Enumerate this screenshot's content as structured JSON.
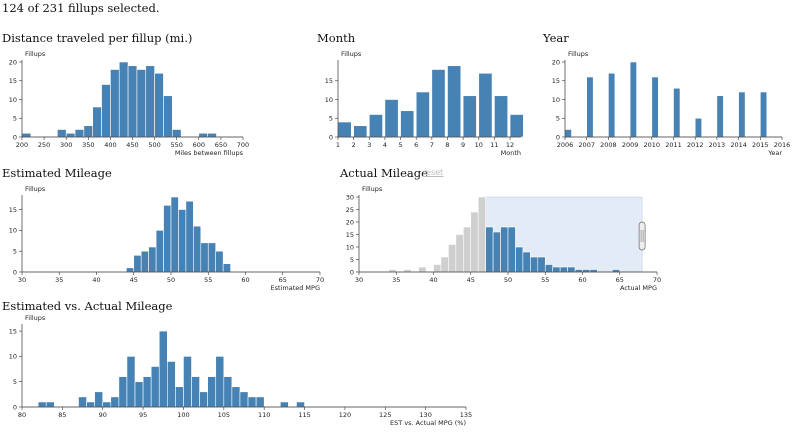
{
  "status_text": "124 of 231 fillups selected.",
  "colors": {
    "selected": "#4682b4",
    "unselected": "#cfcfcf",
    "brush": "#e3ebf6"
  },
  "reset_label": "reset",
  "chart_data": [
    {
      "id": "distance",
      "type": "bar",
      "title": "Distance traveled per fillup (mi.)",
      "ylabel": "Fillups",
      "xlabel": "Miles between fillups",
      "xlim": [
        200,
        700
      ],
      "ylim": [
        0,
        20
      ],
      "xticks": [
        200,
        250,
        300,
        350,
        400,
        450,
        500,
        550,
        600,
        650,
        700
      ],
      "yticks": [
        0,
        5,
        10,
        15,
        20
      ],
      "bin_width": 20,
      "bins": [
        200,
        280,
        300,
        320,
        340,
        360,
        380,
        400,
        420,
        440,
        460,
        480,
        500,
        520,
        540,
        600,
        620
      ],
      "values": [
        1,
        2,
        1,
        2,
        3,
        8,
        14,
        18,
        20,
        19,
        18,
        19,
        17,
        11,
        2,
        1,
        1
      ]
    },
    {
      "id": "month",
      "type": "bar",
      "title": "Month",
      "ylabel": "Fillups",
      "xlabel": "Month",
      "xlim": [
        1,
        12.7
      ],
      "ylim": [
        0,
        20
      ],
      "xticks": [
        1,
        2,
        3,
        4,
        5,
        6,
        7,
        8,
        9,
        10,
        11,
        12
      ],
      "yticks": [
        0,
        5,
        10,
        15
      ],
      "bin_width": 0.85,
      "bins": [
        1,
        2,
        3,
        4,
        5,
        6,
        7,
        8,
        9,
        10,
        11,
        12
      ],
      "values": [
        4,
        3,
        6,
        10,
        7,
        12,
        18,
        19,
        11,
        17,
        11,
        6
      ]
    },
    {
      "id": "year",
      "type": "bar",
      "title": "Year",
      "ylabel": "Fillups",
      "xlabel": "Year",
      "xlim": [
        2006,
        2016
      ],
      "ylim": [
        0,
        20
      ],
      "xticks": [
        2006,
        2007,
        2008,
        2009,
        2010,
        2011,
        2012,
        2013,
        2014,
        2015,
        2016
      ],
      "yticks": [
        0,
        5,
        10,
        15,
        20
      ],
      "bin_width": 0.3,
      "bins": [
        2006,
        2007,
        2008,
        2009,
        2010,
        2011,
        2012,
        2013,
        2014,
        2015
      ],
      "values": [
        2,
        16,
        17,
        20,
        16,
        13,
        5,
        11,
        12,
        12
      ]
    },
    {
      "id": "estimated",
      "type": "bar",
      "title": "Estimated Mileage",
      "ylabel": "Fillups",
      "xlabel": "Estimated MPG",
      "xlim": [
        30,
        70
      ],
      "ylim": [
        0,
        18
      ],
      "xticks": [
        30,
        35,
        40,
        45,
        50,
        55,
        60,
        65,
        70
      ],
      "yticks": [
        0,
        5,
        10,
        15
      ],
      "bin_width": 1,
      "bins": [
        44,
        45,
        46,
        47,
        48,
        49,
        50,
        51,
        52,
        53,
        54,
        55,
        56,
        57
      ],
      "values": [
        1,
        4,
        5,
        6,
        10,
        16,
        18,
        15,
        17,
        11,
        7,
        7,
        5,
        2
      ]
    },
    {
      "id": "actual",
      "type": "bar",
      "title": "Actual Mileage",
      "ylabel": "Fillups",
      "xlabel": "Actual MPG",
      "xlim": [
        30,
        70
      ],
      "ylim": [
        0,
        30
      ],
      "xticks": [
        30,
        35,
        40,
        45,
        50,
        55,
        60,
        65,
        70
      ],
      "yticks": [
        0,
        5,
        10,
        15,
        20,
        25,
        30
      ],
      "bin_width": 1,
      "bins": [
        34,
        36,
        38,
        40,
        41,
        42,
        43,
        44,
        45,
        46,
        47,
        48,
        49,
        50,
        51,
        52,
        53,
        54,
        55,
        56,
        57,
        58,
        59,
        60,
        61,
        64
      ],
      "values": [
        1,
        1,
        2,
        3,
        6,
        11,
        15,
        18,
        24,
        30,
        18,
        16,
        18,
        18,
        10,
        8,
        6,
        6,
        3,
        2,
        2,
        2,
        1,
        1,
        1,
        1
      ],
      "brush": [
        46.5,
        68
      ]
    },
    {
      "id": "ratio",
      "type": "bar",
      "title": "Estimated vs. Actual Mileage",
      "ylabel": "Fillups",
      "xlabel": "EST vs. Actual MPG (%)",
      "xlim": [
        80,
        135
      ],
      "ylim": [
        0,
        16
      ],
      "xticks": [
        80,
        85,
        90,
        95,
        100,
        105,
        110,
        115,
        120,
        125,
        130,
        135
      ],
      "yticks": [
        0,
        5,
        10,
        15
      ],
      "bin_width": 1,
      "bins": [
        82,
        83,
        87,
        88,
        89,
        90,
        91,
        92,
        93,
        94,
        95,
        96,
        97,
        98,
        99,
        100,
        101,
        102,
        103,
        104,
        105,
        106,
        107,
        108,
        109,
        112,
        114
      ],
      "values": [
        1,
        1,
        2,
        1,
        3,
        1,
        2,
        6,
        10,
        5,
        6,
        8,
        15,
        9,
        4,
        10,
        6,
        3,
        6,
        10,
        6,
        4,
        3,
        2,
        2,
        1,
        1
      ]
    }
  ]
}
